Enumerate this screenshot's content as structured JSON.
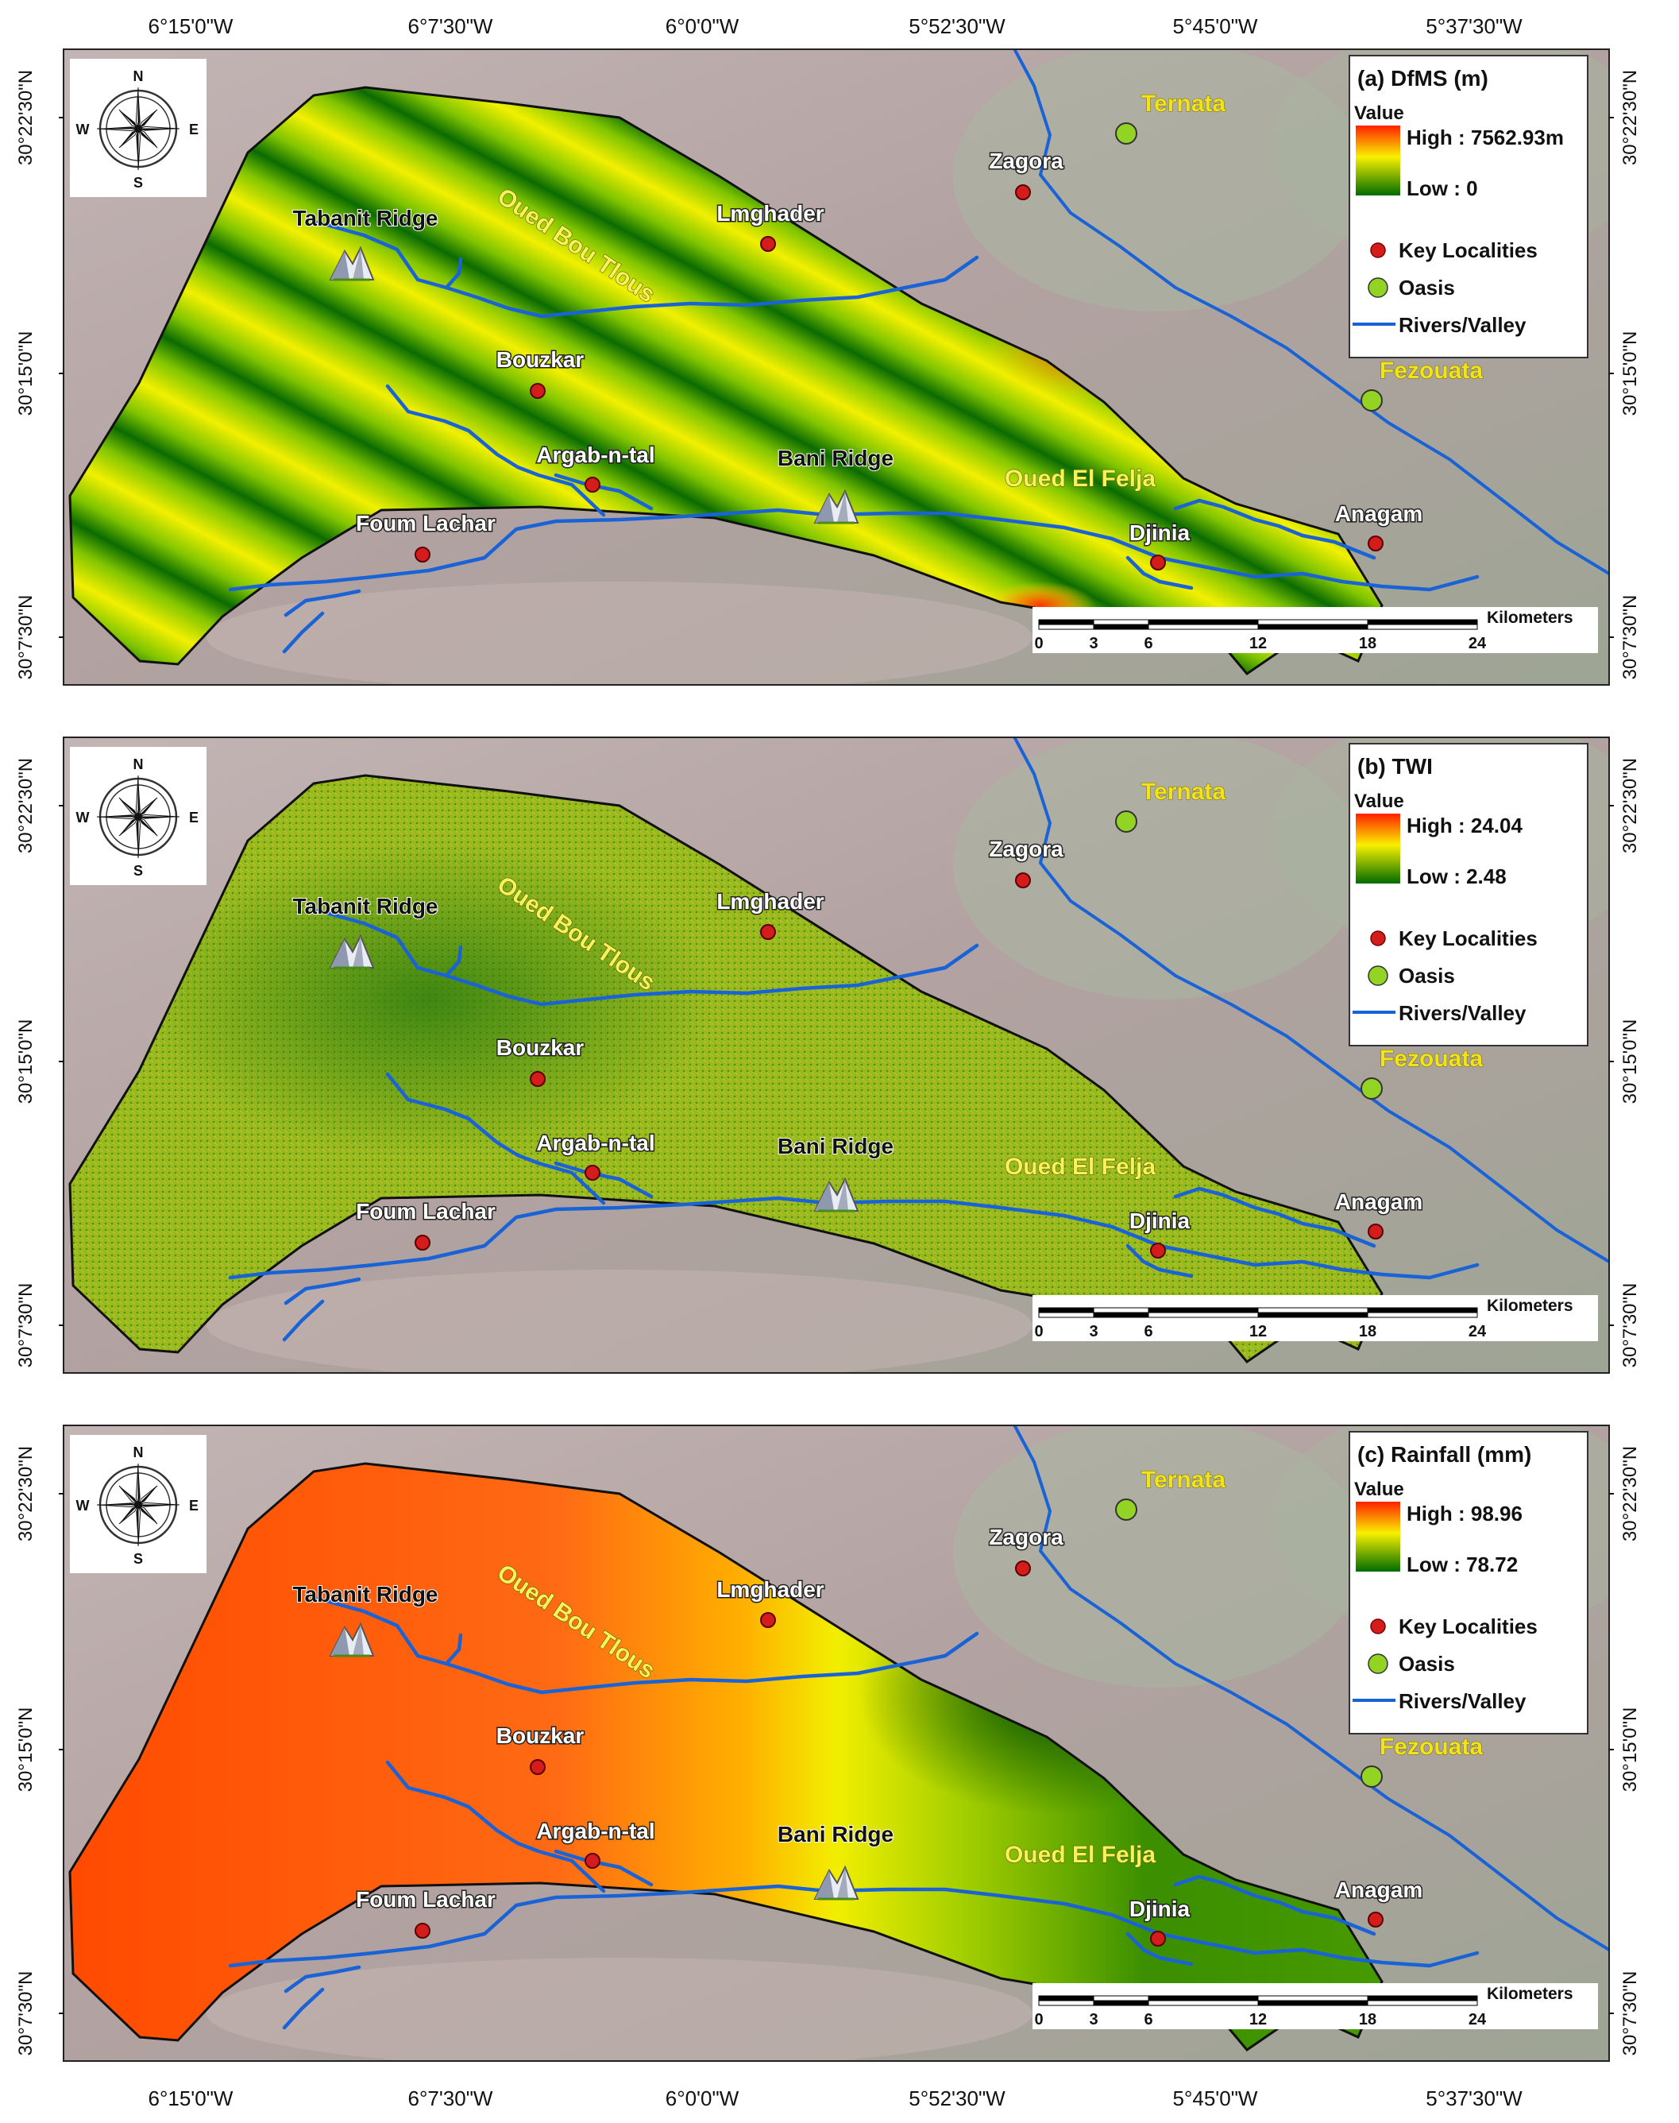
{
  "axes": {
    "lon_ticks": [
      "6°15'0\"W",
      "6°7'30\"W",
      "6°0'0\"W",
      "5°52'30\"W",
      "5°45'0\"W",
      "5°37'30\"W"
    ],
    "lat_ticks": [
      "30°22'30\"N",
      "30°15'0\"N",
      "30°7'30\"N"
    ]
  },
  "compass": {
    "north": "N",
    "south": "S",
    "east": "E",
    "west": "W"
  },
  "labels": {
    "oasis": [
      "Ternata",
      "Fezouata"
    ],
    "localities": [
      "Zagora",
      "Lmghader",
      "Bouzkar",
      "Argab-n-tal",
      "Foum Lachar",
      "Djinia",
      "Anagam"
    ],
    "ridges": [
      "Tabanit Ridge",
      "Bani Ridge"
    ],
    "rivers": [
      "Oued Bou Tlous",
      "Oued El Felja"
    ]
  },
  "scale": {
    "ticks": [
      "0",
      "3",
      "6",
      "12",
      "18",
      "24"
    ],
    "unit": "Kilometers"
  },
  "legend_common": {
    "value": "Value",
    "key_localities": "Key Localities",
    "oasis": "Oasis",
    "rivers": "Rivers/Valley"
  },
  "panels": [
    {
      "id": "a",
      "title": "(a) DfMS (m)",
      "high": "High : 7562.93m",
      "low": "Low : 0"
    },
    {
      "id": "b",
      "title": "(b) TWI",
      "high": "High : 24.04",
      "low": "Low : 2.48"
    },
    {
      "id": "c",
      "title": "(c) Rainfall (mm)",
      "high": "High : 98.96",
      "low": "Low : 78.72"
    }
  ],
  "colors": {
    "background": "#b9a9a7",
    "river": "#1a63d6",
    "locality": "#d41c1c",
    "oasis": "#93d323",
    "oasis_text": "#f4e21c",
    "river_label": "#f7f25a",
    "ramp_high": "#ff2000",
    "ramp_mid": "#f8f000",
    "ramp_low": "#006b00"
  }
}
